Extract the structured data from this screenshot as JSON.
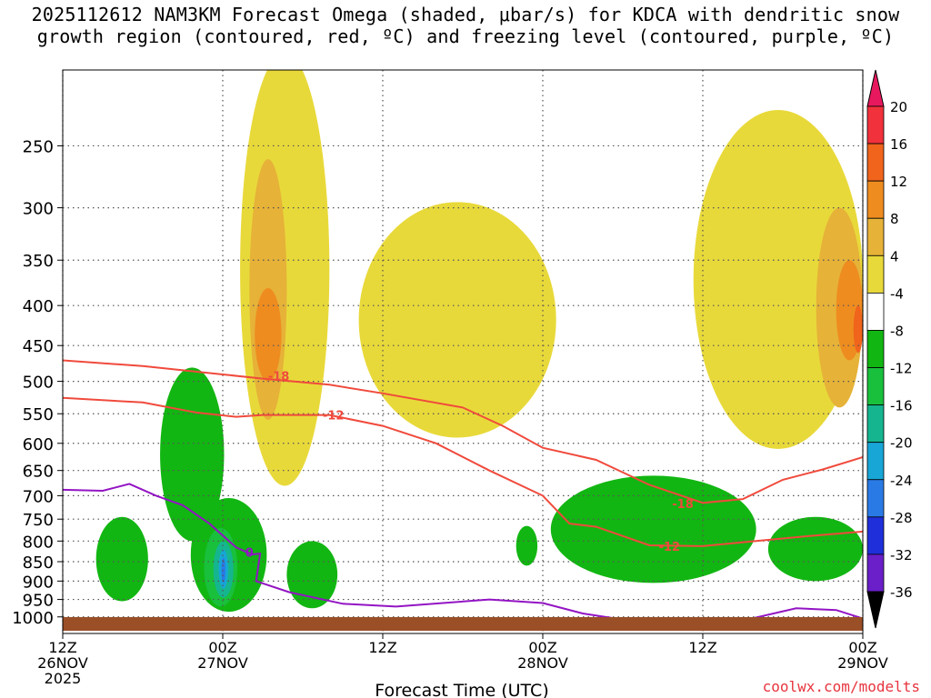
{
  "title_line1": "2025112612 NAM3KM Forecast Omega (shaded, μbar/s) for KDCA with dendritic snow",
  "title_line2": "growth region (contoured, red, ºC) and freezing level (contoured, purple, ºC)",
  "credit": "coolwx.com/modelts",
  "chart_data": {
    "type": "heatmap",
    "title": "2025112612 NAM3KM Forecast Omega (shaded, μbar/s) for KDCA with dendritic snow growth region (contoured, red, ºC) and freezing level (contoured, purple, ºC)",
    "xlabel": "Forecast Time (UTC)",
    "ylabel": "",
    "x_range_hours": [
      0,
      60
    ],
    "y_scale": "log-pressure (hPa), inverted",
    "y_range": [
      1050,
      200
    ],
    "grid": "on (dotted)",
    "x_ticks": [
      {
        "hour": 0,
        "lines": [
          "12Z",
          "26NOV",
          "2025"
        ]
      },
      {
        "hour": 12,
        "lines": [
          "00Z",
          "27NOV"
        ]
      },
      {
        "hour": 24,
        "lines": [
          "12Z"
        ]
      },
      {
        "hour": 36,
        "lines": [
          "00Z",
          "28NOV"
        ]
      },
      {
        "hour": 48,
        "lines": [
          "12Z"
        ]
      },
      {
        "hour": 60,
        "lines": [
          "00Z",
          "29NOV"
        ]
      }
    ],
    "y_ticks": [
      250,
      300,
      350,
      400,
      450,
      500,
      550,
      600,
      650,
      700,
      750,
      800,
      850,
      900,
      950,
      1000
    ],
    "colorbar": {
      "labels": [
        "20",
        "16",
        "12",
        "8",
        "4",
        "-4",
        "-8",
        "-12",
        "-16",
        "-20",
        "-24",
        "-28",
        "-32",
        "-36"
      ],
      "colors": [
        "#e8185e",
        "#f1313b",
        "#f0641c",
        "#ee8c20",
        "#e6b238",
        "#e8d93a",
        "#ffffff",
        "#12b612",
        "#19c03c",
        "#15b58f",
        "#17a6d6",
        "#2a7ae6",
        "#1f2fd9",
        "#6a1fc8",
        "#9b13c4",
        "#a8a8a8",
        "#000000"
      ]
    },
    "omega_areas": [
      {
        "level": "4",
        "h0": 13.3,
        "h1": 20.0,
        "p_top": 190,
        "p_bottom": 680
      },
      {
        "level": "8",
        "h0": 14.0,
        "h1": 16.8,
        "p_top": 260,
        "p_bottom": 560
      },
      {
        "level": "12",
        "h0": 14.4,
        "h1": 16.4,
        "p_top": 380,
        "p_bottom": 500
      },
      {
        "level": "4",
        "h0": 22.2,
        "h1": 37.0,
        "p_top": 295,
        "p_bottom": 590
      },
      {
        "level": "4",
        "h0": 47.3,
        "h1": 60.0,
        "p_top": 225,
        "p_bottom": 610
      },
      {
        "level": "8",
        "h0": 56.5,
        "h1": 60.0,
        "p_top": 300,
        "p_bottom": 540
      },
      {
        "level": "12",
        "h0": 58.0,
        "h1": 60.0,
        "p_top": 350,
        "p_bottom": 470
      },
      {
        "level": "16",
        "h0": 59.3,
        "h1": 60.0,
        "p_top": 400,
        "p_bottom": 460
      },
      {
        "level": "-4",
        "h0": 7.3,
        "h1": 12.1,
        "p_top": 480,
        "p_bottom": 800
      },
      {
        "level": "-4",
        "h0": 2.5,
        "h1": 6.4,
        "p_top": 745,
        "p_bottom": 955
      },
      {
        "level": "-4",
        "h0": 9.6,
        "h1": 15.3,
        "p_top": 705,
        "p_bottom": 985
      },
      {
        "level": "-4",
        "h0": 16.8,
        "h1": 20.6,
        "p_top": 800,
        "p_bottom": 975
      },
      {
        "level": "-4",
        "h0": 34.0,
        "h1": 35.6,
        "p_top": 765,
        "p_bottom": 860
      },
      {
        "level": "-4",
        "h0": 36.6,
        "h1": 52.0,
        "p_top": 660,
        "p_bottom": 905
      },
      {
        "level": "-4",
        "h0": 52.9,
        "h1": 60.0,
        "p_top": 745,
        "p_bottom": 900
      },
      {
        "level": "-8",
        "h0": 10.6,
        "h1": 13.1,
        "p_top": 770,
        "p_bottom": 970
      },
      {
        "level": "-12",
        "h0": 11.3,
        "h1": 12.8,
        "p_top": 800,
        "p_bottom": 945
      },
      {
        "level": "-16",
        "h0": 11.7,
        "h1": 12.4,
        "p_top": 820,
        "p_bottom": 920
      },
      {
        "level": "-20",
        "h0": 11.9,
        "h1": 12.2,
        "p_top": 840,
        "p_bottom": 905
      }
    ],
    "dgz_contours": [
      {
        "label": "-18",
        "points": [
          [
            0,
            470
          ],
          [
            6,
            478
          ],
          [
            12,
            490
          ],
          [
            15,
            496
          ],
          [
            20,
            505
          ],
          [
            24,
            518
          ],
          [
            30,
            540
          ],
          [
            33,
            570
          ],
          [
            36,
            608
          ],
          [
            40,
            630
          ],
          [
            44,
            678
          ],
          [
            48,
            715
          ],
          [
            51,
            707
          ],
          [
            54,
            668
          ],
          [
            57,
            648
          ],
          [
            60,
            625
          ]
        ]
      },
      {
        "label": "-12",
        "points": [
          [
            0,
            525
          ],
          [
            6,
            532
          ],
          [
            10,
            548
          ],
          [
            13,
            555
          ],
          [
            15,
            552
          ],
          [
            20,
            552
          ],
          [
            24,
            570
          ],
          [
            28,
            600
          ],
          [
            32,
            650
          ],
          [
            36,
            700
          ],
          [
            38,
            760
          ],
          [
            40,
            767
          ],
          [
            44,
            810
          ],
          [
            48,
            812
          ],
          [
            52,
            800
          ],
          [
            56,
            788
          ],
          [
            60,
            778
          ]
        ]
      }
    ],
    "freezing_level": [
      {
        "label": "0",
        "points": [
          [
            0,
            688
          ],
          [
            3,
            690
          ],
          [
            5,
            676
          ],
          [
            7,
            700
          ],
          [
            9,
            720
          ],
          [
            11,
            760
          ],
          [
            13,
            815
          ],
          [
            14.2,
            832
          ],
          [
            14.8,
            830
          ],
          [
            14.5,
            900
          ],
          [
            17,
            930
          ],
          [
            21,
            962
          ],
          [
            25,
            970
          ],
          [
            32,
            950
          ],
          [
            36,
            960
          ],
          [
            39,
            990
          ],
          [
            44,
            1020
          ]
        ]
      },
      {
        "label": "",
        "points": [
          [
            50,
            1020
          ],
          [
            55,
            975
          ],
          [
            58,
            980
          ],
          [
            60,
            1005
          ]
        ]
      }
    ]
  }
}
